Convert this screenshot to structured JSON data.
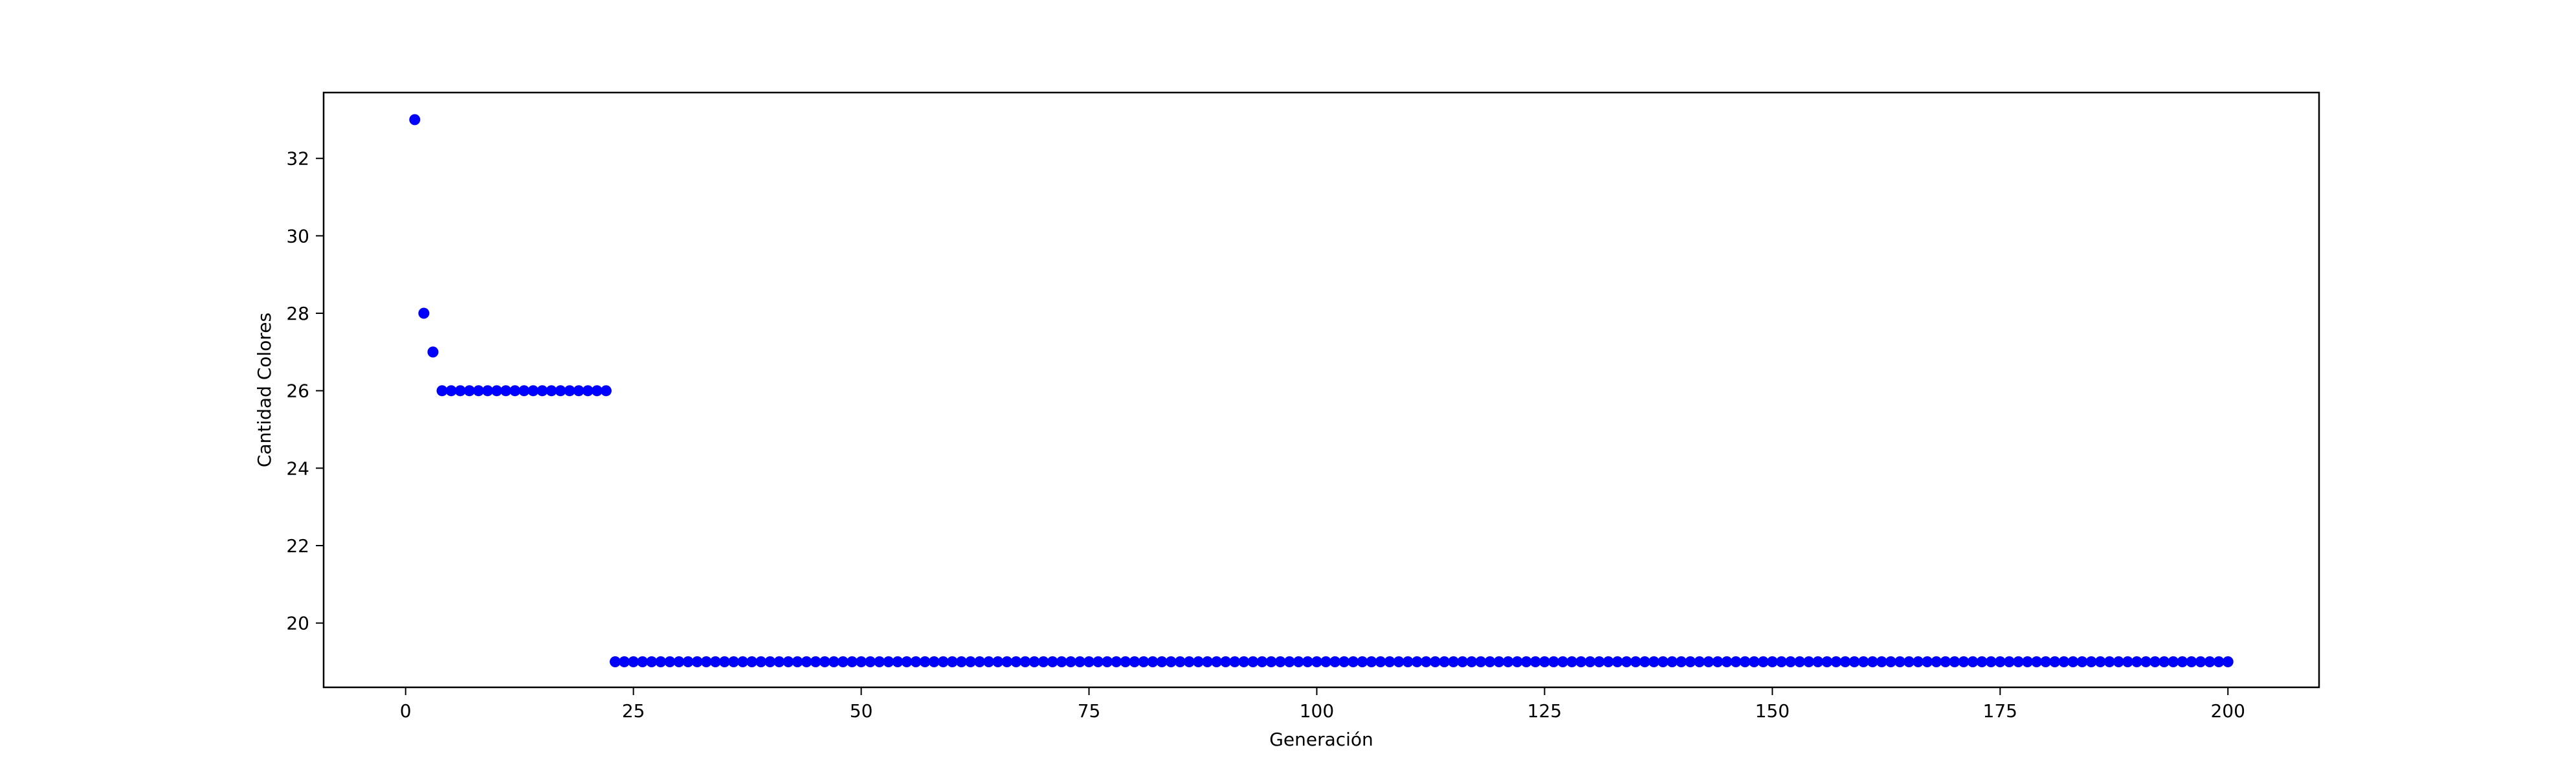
{
  "chart_data": {
    "type": "scatter",
    "title": "",
    "xlabel": "Generación",
    "ylabel": "Cantidad Colores",
    "xlim": [
      -9,
      210
    ],
    "ylim": [
      18.34,
      33.7
    ],
    "xticks": [
      0,
      25,
      50,
      75,
      100,
      125,
      150,
      175,
      200
    ],
    "yticks": [
      20,
      22,
      24,
      26,
      28,
      30,
      32
    ],
    "grid": false,
    "marker_color": "#0000ff",
    "series": [
      {
        "segments": [
          {
            "x_start": 1,
            "x_end": 1,
            "y": 33
          },
          {
            "x_start": 2,
            "x_end": 2,
            "y": 28
          },
          {
            "x_start": 3,
            "x_end": 3,
            "y": 27
          },
          {
            "x_start": 4,
            "x_end": 22,
            "y": 26
          },
          {
            "x_start": 23,
            "x_end": 200,
            "y": 19
          }
        ]
      }
    ]
  }
}
